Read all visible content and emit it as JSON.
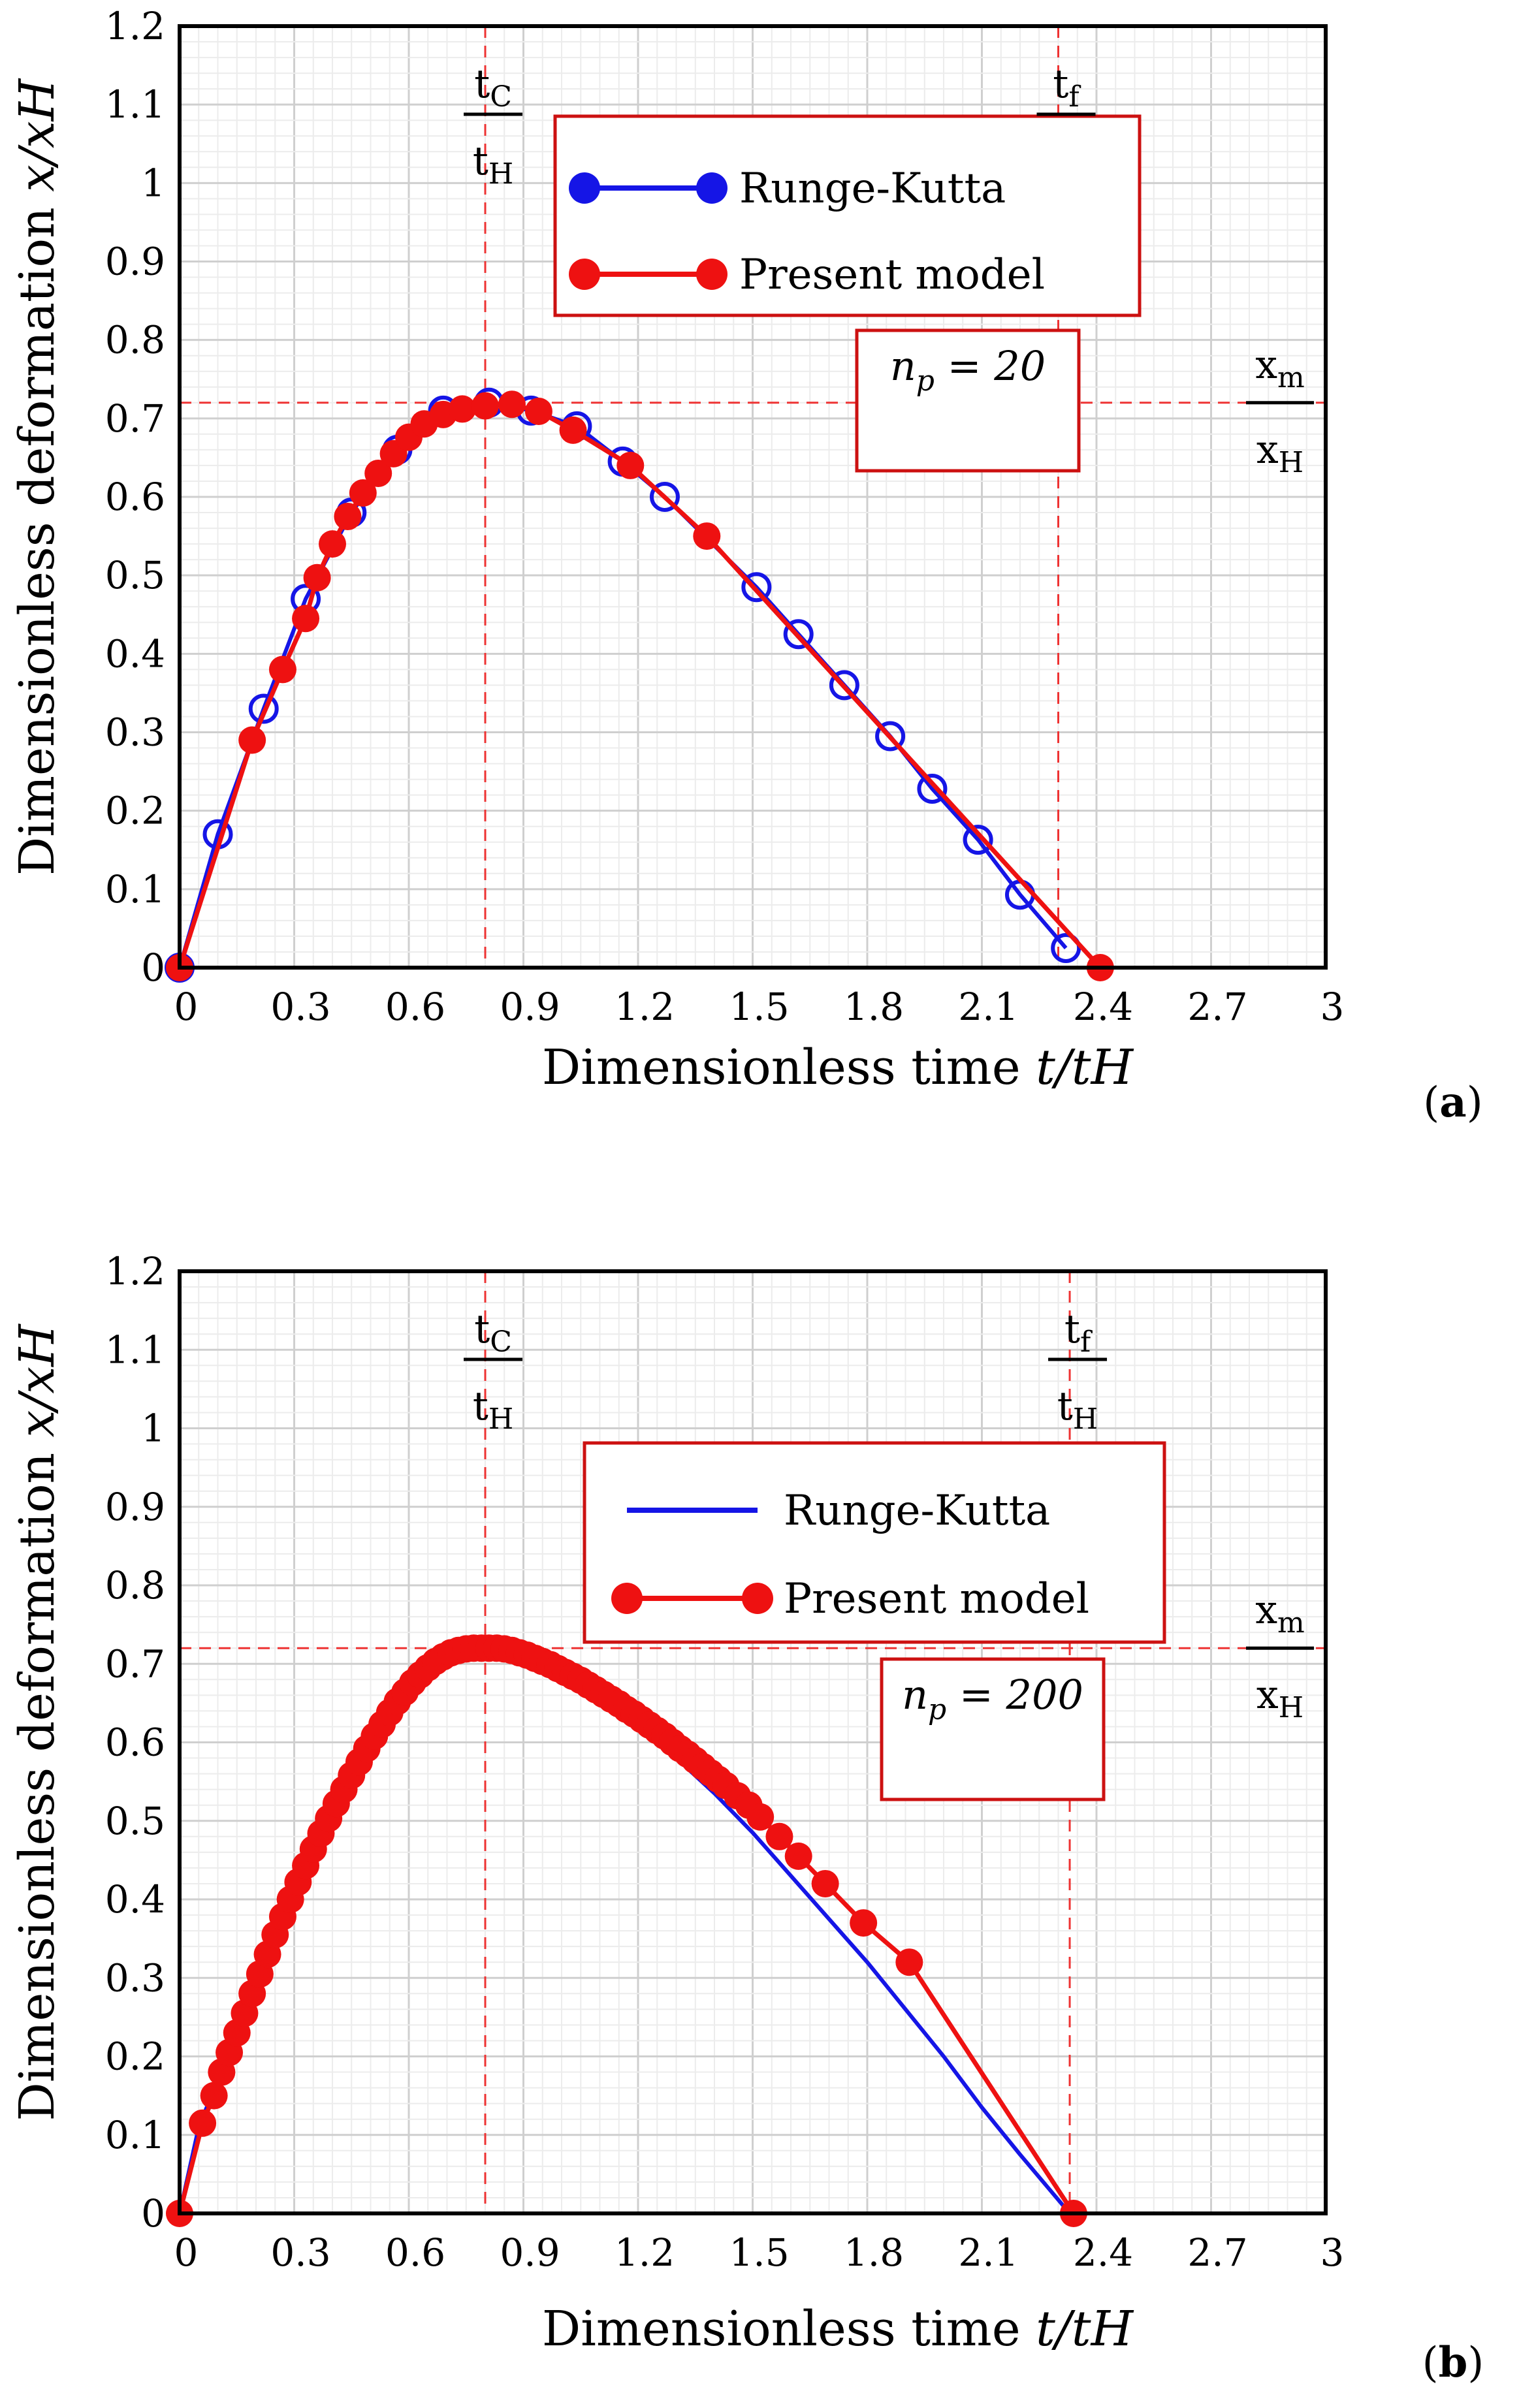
{
  "chart_data": [
    {
      "type": "line",
      "panel_label": "(a)",
      "panel_letter": "a",
      "xlabel": "Dimensionless time t/tH",
      "ylabel": "Dimensionless deformation x/xH",
      "xlim": [
        0,
        3
      ],
      "ylim": [
        0,
        1.2
      ],
      "x_ticks": [
        "0",
        "0.3",
        "0.6",
        "0.9",
        "1.2",
        "1.5",
        "1.8",
        "2.1",
        "2.4",
        "2.7",
        "3"
      ],
      "y_ticks": [
        "0",
        "0.1",
        "0.2",
        "0.3",
        "0.4",
        "0.5",
        "0.6",
        "0.7",
        "0.8",
        "0.9",
        "1",
        "1.1",
        "1.2"
      ],
      "grid": true,
      "legend": {
        "position": "top-right",
        "entries": [
          "Runge-Kutta",
          "Present model"
        ]
      },
      "np_label": "n_p = 20",
      "annotations": {
        "tc_num": "tC",
        "tc_den": "tH",
        "tf_num": "tf",
        "tf_den": "",
        "xm_num": "xm",
        "xm_den": "xH"
      },
      "reference_lines": {
        "t_c": 0.8,
        "t_f": 2.3,
        "x_m": 0.72
      },
      "series": [
        {
          "name": "Runge-Kutta",
          "color": "#1515e6",
          "marker": "open-circle",
          "x": [
            0,
            0.1,
            0.22,
            0.33,
            0.45,
            0.57,
            0.69,
            0.81,
            0.92,
            1.04,
            1.16,
            1.27,
            1.51,
            1.62,
            1.74,
            1.86,
            1.97,
            2.09,
            2.2,
            2.32
          ],
          "y": [
            0,
            0.17,
            0.33,
            0.47,
            0.58,
            0.66,
            0.71,
            0.72,
            0.71,
            0.69,
            0.645,
            0.6,
            0.485,
            0.425,
            0.36,
            0.295,
            0.228,
            0.163,
            0.093,
            0.025
          ]
        },
        {
          "name": "Present model",
          "color": "#ee1111",
          "marker": "filled-circle",
          "x": [
            0,
            0.19,
            0.27,
            0.33,
            0.36,
            0.4,
            0.44,
            0.48,
            0.52,
            0.56,
            0.6,
            0.64,
            0.69,
            0.74,
            0.8,
            0.87,
            0.94,
            1.03,
            1.18,
            1.38,
            2.41
          ],
          "y": [
            0,
            0.29,
            0.38,
            0.445,
            0.497,
            0.54,
            0.575,
            0.605,
            0.63,
            0.655,
            0.676,
            0.693,
            0.705,
            0.712,
            0.716,
            0.718,
            0.709,
            0.685,
            0.64,
            0.55,
            0
          ]
        }
      ]
    },
    {
      "type": "line",
      "panel_label": "(b)",
      "panel_letter": "b",
      "xlabel": "Dimensionless time t/tH",
      "ylabel": "Dimensionless deformation x/xH",
      "xlim": [
        0,
        3
      ],
      "ylim": [
        0,
        1.2
      ],
      "x_ticks": [
        "0",
        "0.3",
        "0.6",
        "0.9",
        "1.2",
        "1.5",
        "1.8",
        "2.1",
        "2.4",
        "2.7",
        "3"
      ],
      "y_ticks": [
        "0",
        "0.1",
        "0.2",
        "0.3",
        "0.4",
        "0.5",
        "0.6",
        "0.7",
        "0.8",
        "0.9",
        "1",
        "1.1",
        "1.2"
      ],
      "grid": true,
      "legend": {
        "position": "top-right",
        "entries": [
          "Runge-Kutta",
          "Present model"
        ]
      },
      "np_label": "n_p = 200",
      "annotations": {
        "tc_num": "tC",
        "tc_den": "tH",
        "tf_num": "tf",
        "tf_den": "tH",
        "xm_num": "xm",
        "xm_den": "xH"
      },
      "reference_lines": {
        "t_c": 0.8,
        "t_f": 2.33,
        "x_m": 0.72
      },
      "series": [
        {
          "name": "Runge-Kutta",
          "color": "#1515e6",
          "marker": "none",
          "x": [
            0,
            0.05,
            0.1,
            0.15,
            0.2,
            0.3,
            0.4,
            0.5,
            0.6,
            0.7,
            0.8,
            0.9,
            1.0,
            1.1,
            1.2,
            1.3,
            1.4,
            1.5,
            1.6,
            1.7,
            1.8,
            1.9,
            2.0,
            2.1,
            2.2,
            2.33
          ],
          "y": [
            0,
            0.11,
            0.17,
            0.24,
            0.3,
            0.42,
            0.52,
            0.6,
            0.66,
            0.705,
            0.72,
            0.715,
            0.695,
            0.665,
            0.625,
            0.58,
            0.535,
            0.485,
            0.43,
            0.375,
            0.32,
            0.26,
            0.2,
            0.135,
            0.075,
            0
          ]
        },
        {
          "name": "Present model",
          "color": "#ee1111",
          "marker": "filled-circle",
          "x": [
            0,
            0.06,
            0.09,
            0.11,
            0.13,
            0.15,
            0.17,
            0.19,
            0.21,
            0.23,
            0.25,
            0.27,
            0.29,
            0.31,
            0.33,
            0.35,
            0.37,
            0.39,
            0.41,
            0.43,
            0.45,
            0.47,
            0.49,
            0.51,
            0.53,
            0.55,
            0.57,
            0.59,
            0.61,
            0.63,
            0.65,
            0.67,
            0.69,
            0.71,
            0.73,
            0.75,
            0.77,
            0.79,
            0.81,
            0.83,
            0.85,
            0.87,
            0.89,
            0.91,
            0.93,
            0.95,
            0.97,
            0.99,
            1.01,
            1.03,
            1.05,
            1.07,
            1.09,
            1.11,
            1.13,
            1.15,
            1.17,
            1.19,
            1.21,
            1.23,
            1.25,
            1.27,
            1.29,
            1.31,
            1.33,
            1.35,
            1.37,
            1.39,
            1.41,
            1.43,
            1.46,
            1.49,
            1.52,
            1.57,
            1.62,
            1.69,
            1.79,
            1.91,
            2.34
          ],
          "y": [
            0,
            0.115,
            0.15,
            0.18,
            0.205,
            0.23,
            0.255,
            0.28,
            0.305,
            0.33,
            0.355,
            0.378,
            0.4,
            0.422,
            0.443,
            0.464,
            0.484,
            0.503,
            0.522,
            0.54,
            0.558,
            0.575,
            0.592,
            0.608,
            0.623,
            0.638,
            0.652,
            0.664,
            0.676,
            0.686,
            0.695,
            0.703,
            0.709,
            0.714,
            0.717,
            0.719,
            0.72,
            0.72,
            0.72,
            0.72,
            0.719,
            0.717,
            0.714,
            0.711,
            0.707,
            0.703,
            0.699,
            0.694,
            0.689,
            0.684,
            0.679,
            0.673,
            0.667,
            0.661,
            0.655,
            0.649,
            0.642,
            0.636,
            0.629,
            0.622,
            0.615,
            0.608,
            0.6,
            0.592,
            0.585,
            0.577,
            0.569,
            0.561,
            0.553,
            0.545,
            0.532,
            0.52,
            0.505,
            0.48,
            0.455,
            0.42,
            0.37,
            0.32,
            0
          ]
        }
      ]
    }
  ]
}
